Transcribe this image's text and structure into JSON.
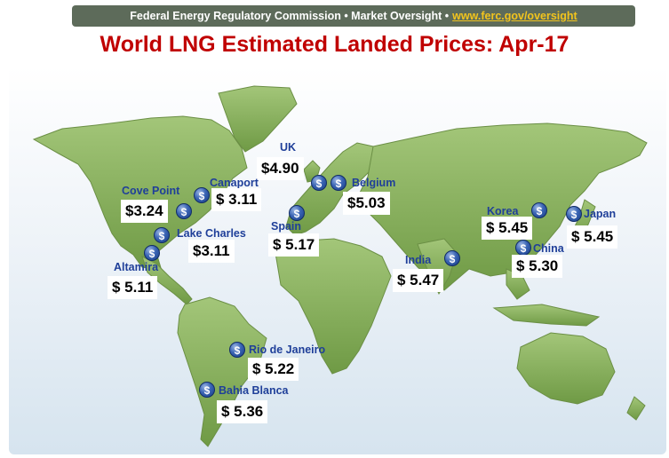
{
  "header": {
    "agency": "Federal Energy Regulatory Commission • Market Oversight • ",
    "link": "www.ferc.gov/oversight"
  },
  "title": "World LNG Estimated Landed Prices: Apr-17",
  "icon_name": "dollar-coin-icon",
  "colors": {
    "title": "#c00000",
    "label": "#1f3f99",
    "land": "#86b05a",
    "banner": "#5d6b5a",
    "link": "#f2c41d"
  },
  "locations": [
    {
      "name": "UK",
      "price": "$4.90"
    },
    {
      "name": "Belgium",
      "price": "$5.03"
    },
    {
      "name": "Cove Point",
      "price": "$3.24"
    },
    {
      "name": "Canaport",
      "price": "$  3.11"
    },
    {
      "name": "Lake Charles",
      "price": "$3.11"
    },
    {
      "name": "Spain",
      "price": "$  5.17"
    },
    {
      "name": "Altamira",
      "price": "$  5.11"
    },
    {
      "name": "India",
      "price": "$  5.47"
    },
    {
      "name": "Korea",
      "price": "$  5.45"
    },
    {
      "name": "Japan",
      "price": "$  5.45"
    },
    {
      "name": "China",
      "price": "$  5.30"
    },
    {
      "name": "Rio de Janeiro",
      "price": "$  5.22"
    },
    {
      "name": "Bahia Blanca",
      "price": "$  5.36"
    }
  ]
}
